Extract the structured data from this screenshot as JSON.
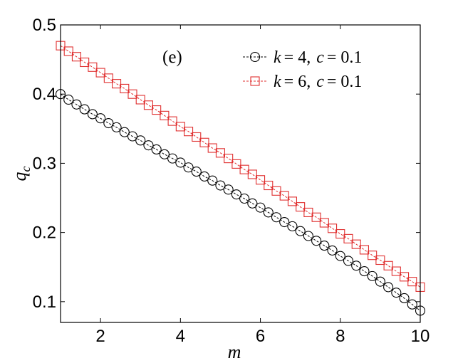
{
  "chart_data": {
    "type": "line",
    "xlabel": "m",
    "ylabel": "q",
    "ylabel_subscript": "c",
    "annotation": "(e)",
    "xlim": [
      1,
      10
    ],
    "ylim": [
      0.07,
      0.5
    ],
    "xticks": [
      2,
      4,
      6,
      8,
      10
    ],
    "yticks": [
      0.1,
      0.2,
      0.3,
      0.4,
      0.5
    ],
    "xtick_labels": [
      "2",
      "4",
      "6",
      "8",
      "10"
    ],
    "ytick_labels": [
      "0.1",
      "0.2",
      "0.3",
      "0.4",
      "0.5"
    ],
    "grid": false,
    "legend_position": "top-right",
    "x": [
      1.0,
      1.2,
      1.4,
      1.6,
      1.8,
      2.0,
      2.2,
      2.4,
      2.6,
      2.8,
      3.0,
      3.2,
      3.4,
      3.6,
      3.8,
      4.0,
      4.2,
      4.4,
      4.6,
      4.8,
      5.0,
      5.2,
      5.4,
      5.6,
      5.8,
      6.0,
      6.2,
      6.4,
      6.6,
      6.8,
      7.0,
      7.2,
      7.4,
      7.6,
      7.8,
      8.0,
      8.2,
      8.4,
      8.6,
      8.8,
      9.0,
      9.2,
      9.4,
      9.6,
      9.8,
      10.0
    ],
    "series": [
      {
        "name": "k = 4, c = 0.1",
        "name_parts": {
          "k": "k",
          "kval": "= 4,",
          "c": "c",
          "cval": "= 0.1"
        },
        "color": "#000000",
        "marker": "circle",
        "values": [
          0.4,
          0.392,
          0.385,
          0.378,
          0.371,
          0.365,
          0.358,
          0.352,
          0.345,
          0.339,
          0.333,
          0.326,
          0.32,
          0.313,
          0.307,
          0.301,
          0.294,
          0.288,
          0.281,
          0.275,
          0.268,
          0.262,
          0.255,
          0.249,
          0.242,
          0.236,
          0.229,
          0.222,
          0.215,
          0.209,
          0.202,
          0.195,
          0.188,
          0.181,
          0.174,
          0.166,
          0.159,
          0.152,
          0.144,
          0.137,
          0.129,
          0.121,
          0.113,
          0.105,
          0.096,
          0.087
        ]
      },
      {
        "name": "k = 6, c = 0.1",
        "name_parts": {
          "k": "k",
          "kval": "= 6,",
          "c": "c",
          "cval": "= 0.1"
        },
        "color": "#e03030",
        "marker": "square",
        "values": [
          0.47,
          0.462,
          0.454,
          0.446,
          0.439,
          0.431,
          0.423,
          0.415,
          0.408,
          0.4,
          0.392,
          0.384,
          0.377,
          0.369,
          0.361,
          0.353,
          0.346,
          0.338,
          0.33,
          0.322,
          0.315,
          0.307,
          0.299,
          0.291,
          0.284,
          0.276,
          0.268,
          0.26,
          0.253,
          0.245,
          0.237,
          0.229,
          0.222,
          0.214,
          0.206,
          0.198,
          0.191,
          0.183,
          0.175,
          0.167,
          0.16,
          0.152,
          0.144,
          0.136,
          0.129,
          0.121
        ]
      }
    ]
  }
}
